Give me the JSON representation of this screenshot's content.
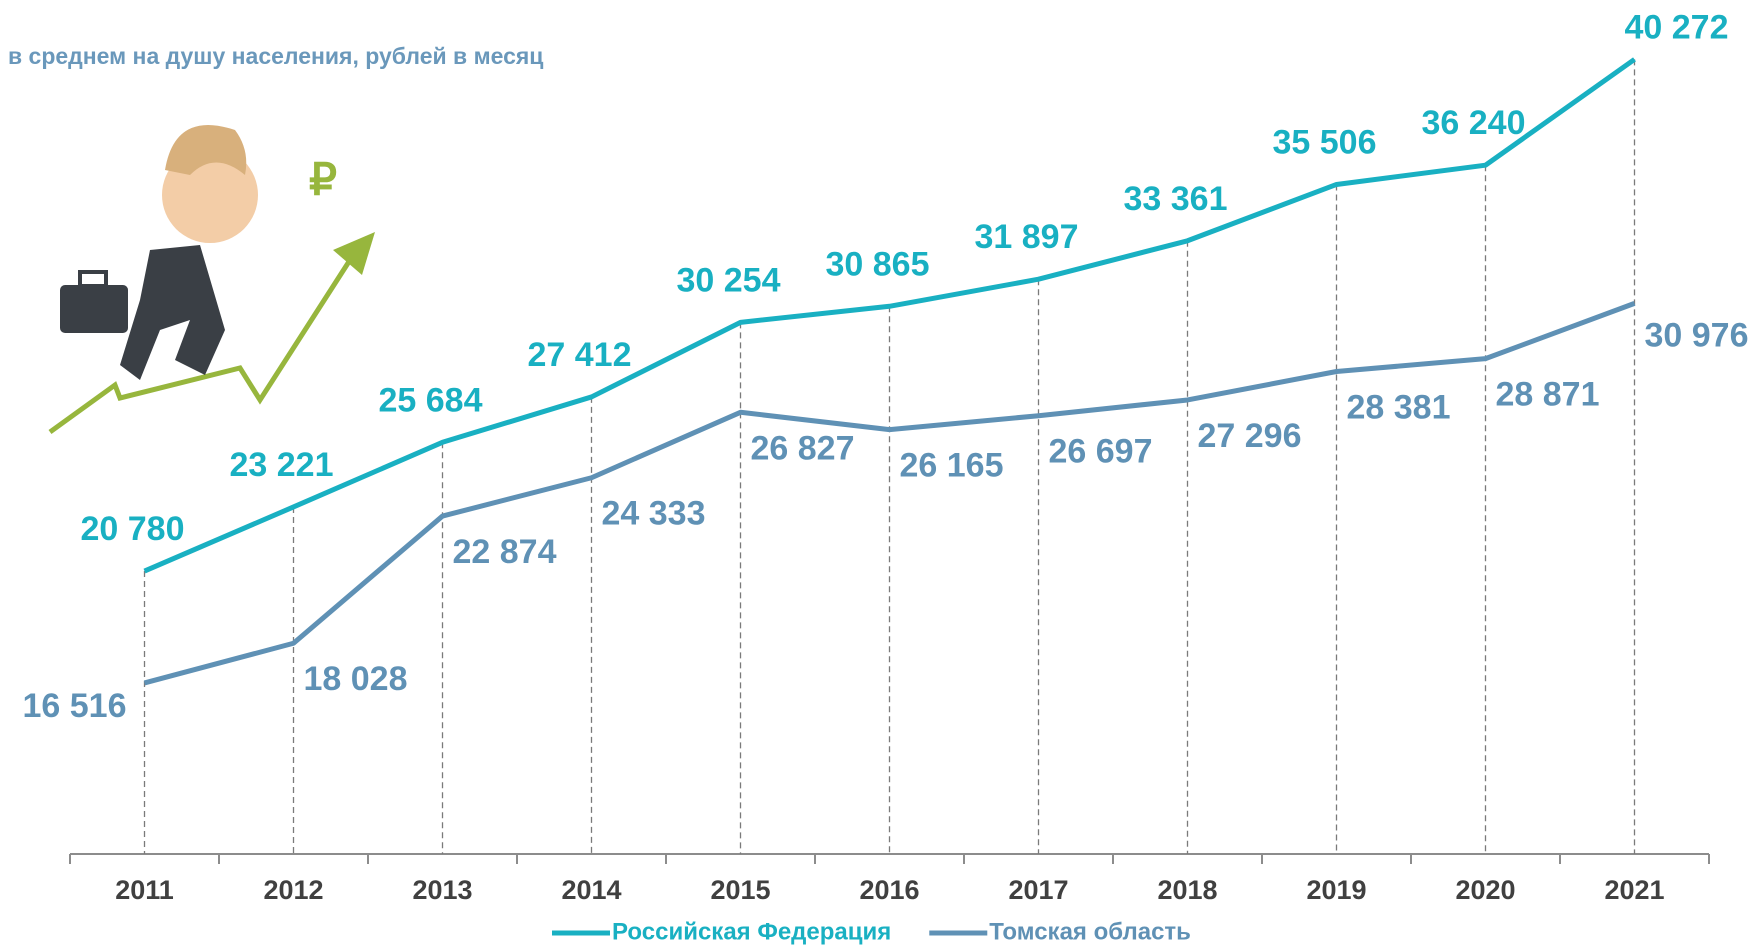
{
  "chart_data": {
    "type": "line",
    "subtitle": "в среднем на душу населения, рублей в месяц",
    "annotation": "₽",
    "categories": [
      "2011",
      "2012",
      "2013",
      "2014",
      "2015",
      "2016",
      "2017",
      "2018",
      "2019",
      "2020",
      "2021"
    ],
    "series": [
      {
        "name": "Российская Федерация",
        "color": "#19b0c2",
        "values": [
          20780,
          23221,
          25684,
          27412,
          30254,
          30865,
          31897,
          33361,
          35506,
          36240,
          40272
        ],
        "value_labels": [
          "20 780",
          "23 221",
          "25 684",
          "27 412",
          "30 254",
          "30 865",
          "31 897",
          "33 361",
          "35 506",
          "36 240",
          "40 272"
        ]
      },
      {
        "name": "Томская область",
        "color": "#5f91b5",
        "values": [
          16516,
          18028,
          22874,
          24333,
          26827,
          26165,
          26697,
          27296,
          28381,
          28871,
          30976
        ],
        "value_labels": [
          "16 516",
          "18 028",
          "22 874",
          "24 333",
          "26 827",
          "26 165",
          "26 697",
          "27 296",
          "28 381",
          "28 871",
          "30 976"
        ]
      }
    ],
    "ylim": [
      10000,
      42000
    ],
    "legend": "bottom"
  }
}
